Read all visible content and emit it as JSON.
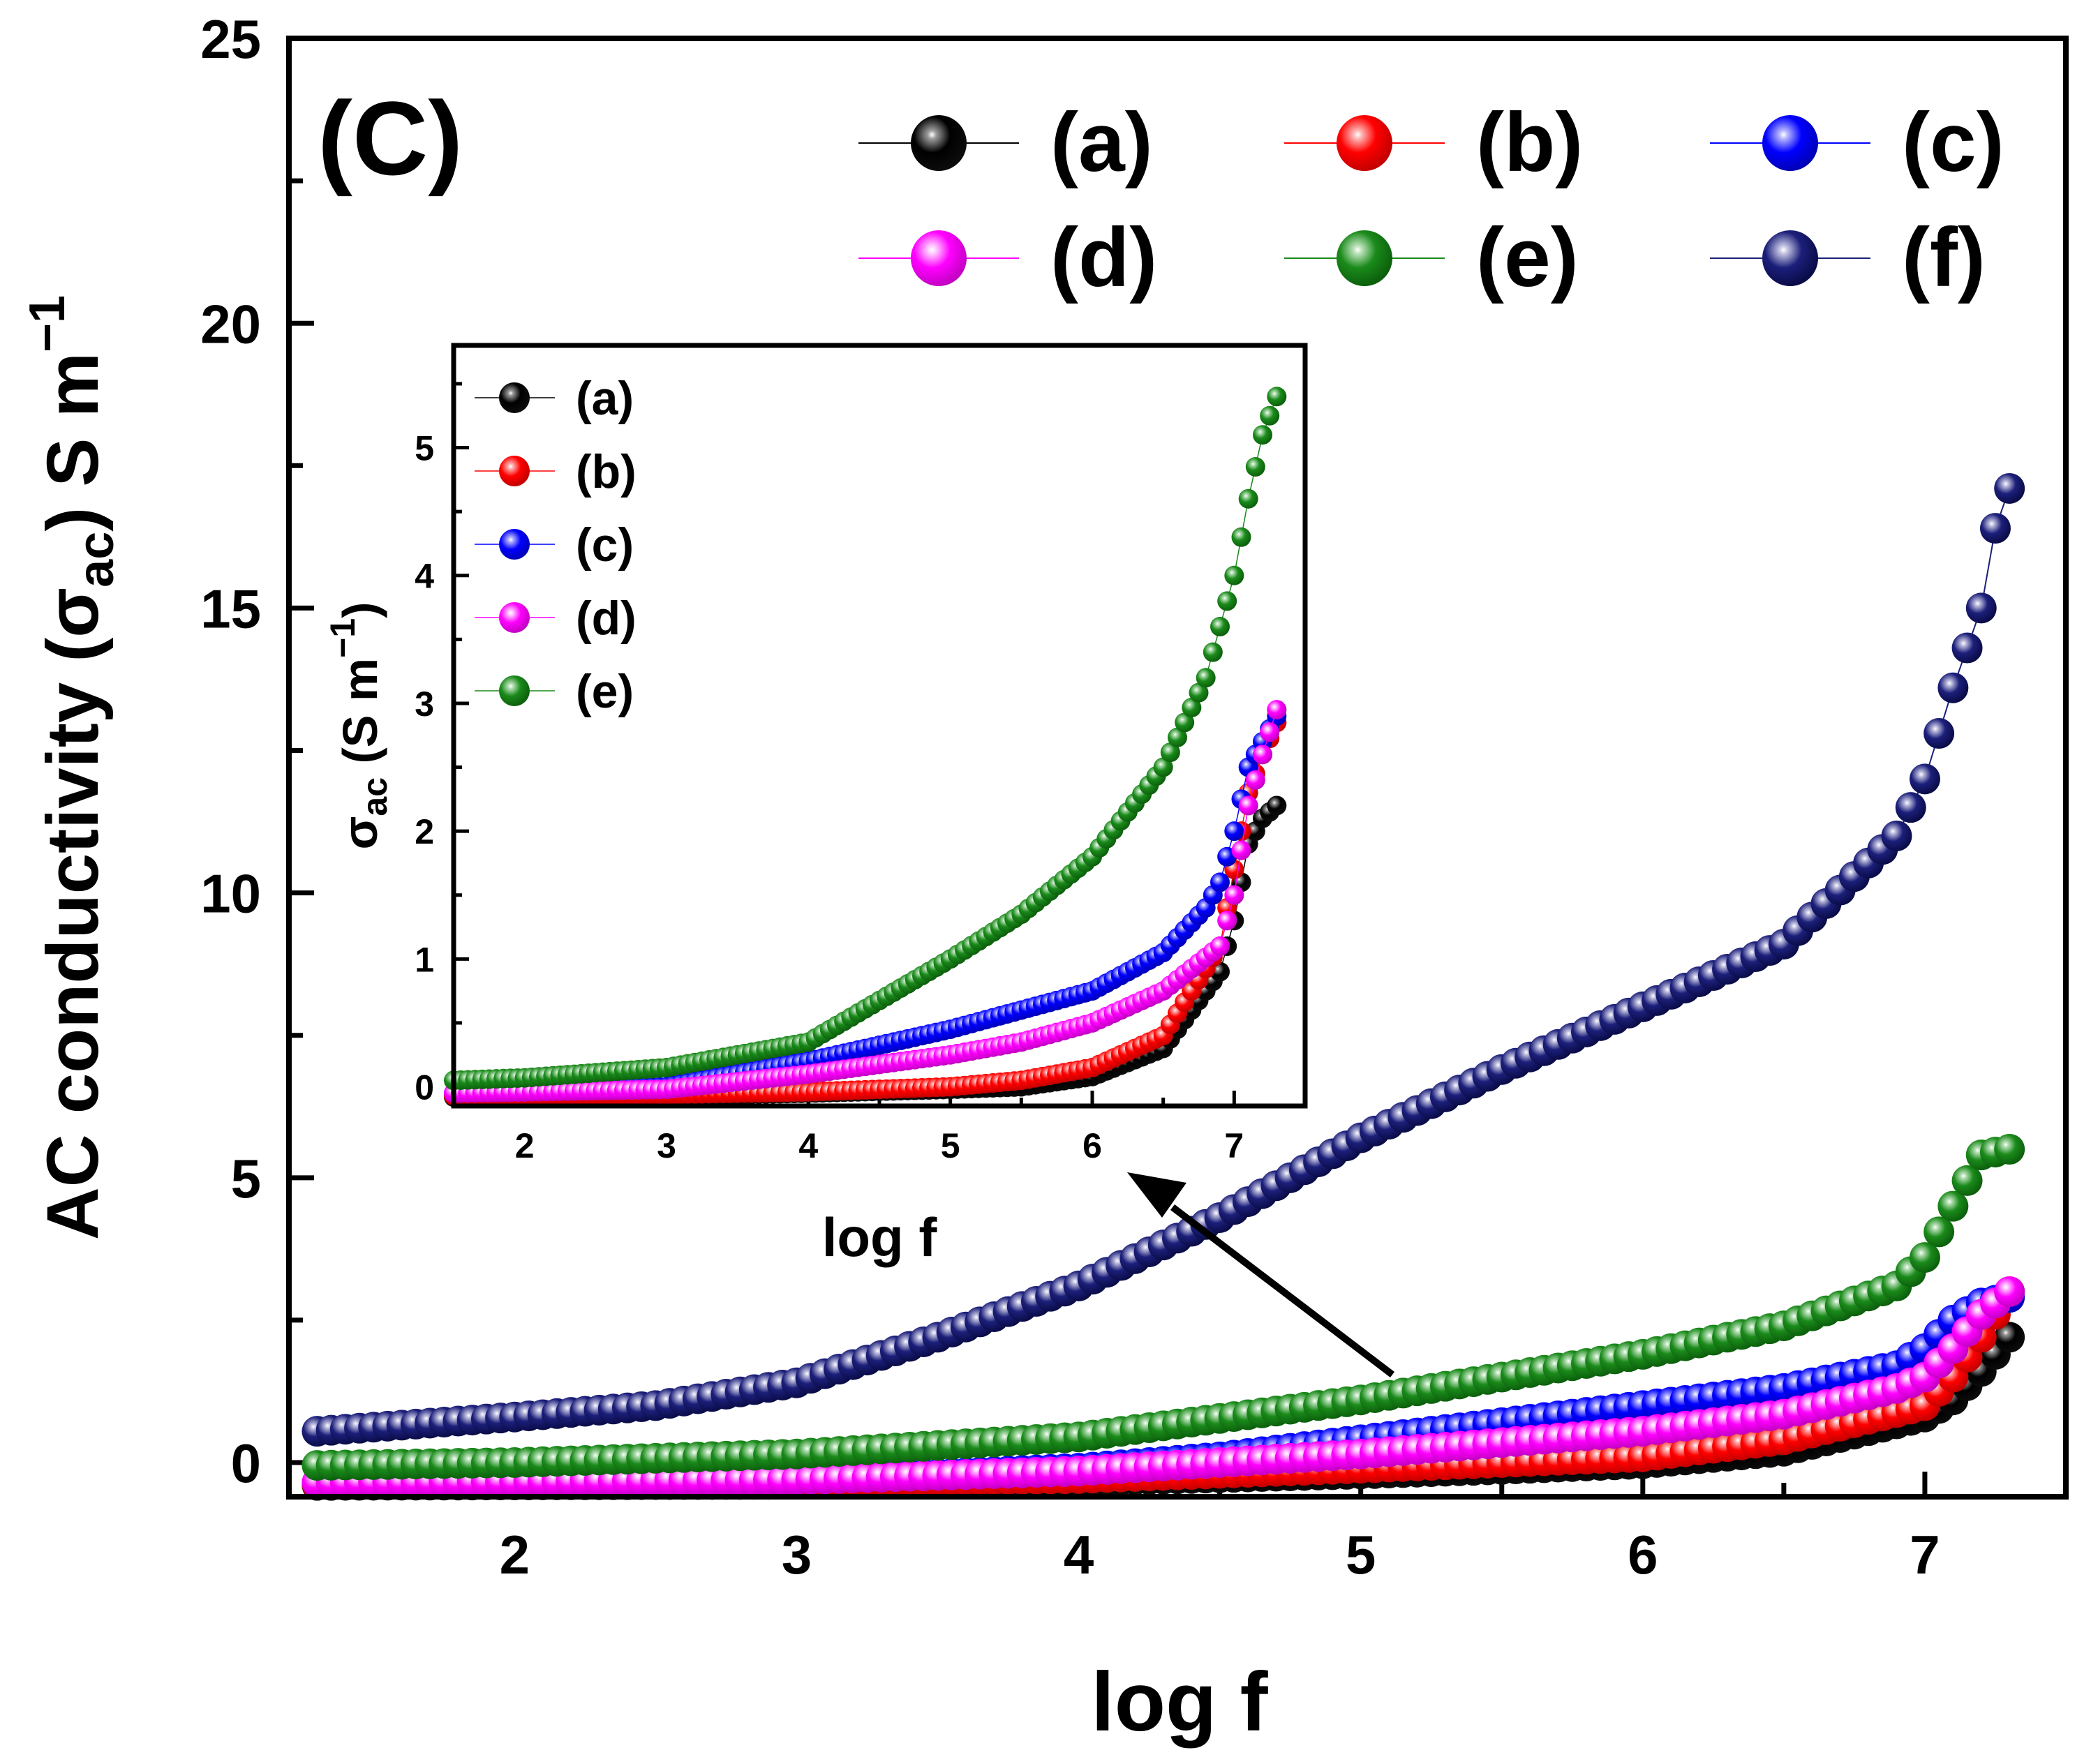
{
  "chart_data": {
    "main": {
      "type": "scatter",
      "panel_label": "(C)",
      "xlabel": "log f",
      "ylabel": {
        "prefix": "AC conductivity (",
        "symbol": "σ",
        "sub": "ac",
        "suffix": ") S m",
        "sup": "−1"
      },
      "xlim": [
        1.2,
        7.5
      ],
      "ylim": [
        -0.6,
        25
      ],
      "xticks": [
        2,
        3,
        4,
        5,
        6,
        7
      ],
      "yticks": [
        0,
        5,
        10,
        15,
        20,
        25
      ],
      "x_range": [
        1.3,
        7.3
      ],
      "series": [
        {
          "name": "(a)",
          "color": "#000000",
          "light": "#9a9a9a",
          "dark": "#0c0c0c",
          "anchors": [
            [
              1.3,
              -0.4
            ],
            [
              3.0,
              -0.38
            ],
            [
              4.0,
              -0.33
            ],
            [
              5.0,
              -0.2
            ],
            [
              5.5,
              -0.12
            ],
            [
              6.0,
              -0.02
            ],
            [
              6.5,
              0.2
            ],
            [
              7.0,
              0.8
            ],
            [
              7.1,
              1.1
            ],
            [
              7.2,
              1.6
            ],
            [
              7.3,
              2.2
            ]
          ]
        },
        {
          "name": "(b)",
          "color": "#ff0000",
          "light": "#ffb3b3",
          "dark": "#c40000",
          "anchors": [
            [
              1.3,
              -0.38
            ],
            [
              3.0,
              -0.35
            ],
            [
              4.0,
              -0.28
            ],
            [
              5.0,
              -0.1
            ],
            [
              5.5,
              0.0
            ],
            [
              6.0,
              0.1
            ],
            [
              6.5,
              0.4
            ],
            [
              7.0,
              1.0
            ],
            [
              7.1,
              1.5
            ],
            [
              7.2,
              2.2
            ],
            [
              7.3,
              3.0
            ]
          ]
        },
        {
          "name": "(c)",
          "color": "#0000ff",
          "light": "#b3b3ff",
          "dark": "#0000b8",
          "anchors": [
            [
              1.3,
              -0.35
            ],
            [
              3.0,
              -0.3
            ],
            [
              4.0,
              -0.1
            ],
            [
              4.5,
              0.1
            ],
            [
              5.0,
              0.4
            ],
            [
              5.5,
              0.7
            ],
            [
              6.0,
              1.0
            ],
            [
              6.5,
              1.3
            ],
            [
              6.9,
              1.7
            ],
            [
              7.0,
              2.0
            ],
            [
              7.1,
              2.5
            ],
            [
              7.2,
              2.8
            ],
            [
              7.3,
              2.9
            ]
          ]
        },
        {
          "name": "(d)",
          "color": "#ff00ff",
          "light": "#ffc8ff",
          "dark": "#c400c4",
          "anchors": [
            [
              1.3,
              -0.35
            ],
            [
              3.0,
              -0.3
            ],
            [
              4.0,
              -0.15
            ],
            [
              4.5,
              0.0
            ],
            [
              5.0,
              0.15
            ],
            [
              5.5,
              0.35
            ],
            [
              6.0,
              0.55
            ],
            [
              6.5,
              0.85
            ],
            [
              6.9,
              1.3
            ],
            [
              7.0,
              1.5
            ],
            [
              7.1,
              2.0
            ],
            [
              7.2,
              2.6
            ],
            [
              7.3,
              3.0
            ]
          ]
        },
        {
          "name": "(e)",
          "color": "#1a8a1a",
          "light": "#b8e0b8",
          "dark": "#0c600c",
          "anchors": [
            [
              1.3,
              -0.05
            ],
            [
              2.0,
              0.0
            ],
            [
              3.0,
              0.15
            ],
            [
              4.0,
              0.45
            ],
            [
              5.0,
              1.1
            ],
            [
              6.0,
              1.9
            ],
            [
              6.5,
              2.4
            ],
            [
              6.9,
              3.1
            ],
            [
              7.0,
              3.6
            ],
            [
              7.1,
              4.5
            ],
            [
              7.2,
              5.4
            ],
            [
              7.3,
              5.5
            ]
          ]
        },
        {
          "name": "(f)",
          "color": "#1c1f7a",
          "light": "#c0c0e0",
          "dark": "#0a0c48",
          "anchors": [
            [
              1.3,
              0.55
            ],
            [
              2.0,
              0.8
            ],
            [
              2.5,
              1.0
            ],
            [
              3.0,
              1.4
            ],
            [
              3.5,
              2.2
            ],
            [
              4.0,
              3.1
            ],
            [
              4.5,
              4.3
            ],
            [
              5.0,
              5.7
            ],
            [
              5.5,
              6.9
            ],
            [
              6.0,
              8.0
            ],
            [
              6.5,
              9.1
            ],
            [
              6.9,
              11.0
            ],
            [
              7.0,
              12.0
            ],
            [
              7.1,
              13.6
            ],
            [
              7.2,
              15.0
            ],
            [
              7.25,
              16.4
            ],
            [
              7.3,
              17.1
            ]
          ]
        }
      ]
    },
    "inset": {
      "type": "scatter",
      "xlabel": "log f",
      "ylabel": {
        "symbol": "σ",
        "sub": "ac",
        "suffix": " (S m",
        "sup": "−1",
        "close": ")"
      },
      "xlim": [
        1.5,
        7.5
      ],
      "ylim": [
        -0.15,
        5.8
      ],
      "xticks": [
        2,
        3,
        4,
        5,
        6,
        7
      ],
      "yticks": [
        0,
        1,
        2,
        3,
        4,
        5
      ],
      "x_range": [
        1.5,
        7.3
      ],
      "series": [
        {
          "name": "(a)",
          "color": "#000000",
          "light": "#9a9a9a",
          "dark": "#0c0c0c",
          "anchors": [
            [
              1.5,
              -0.08
            ],
            [
              3.0,
              -0.07
            ],
            [
              4.0,
              -0.05
            ],
            [
              5.0,
              -0.02
            ],
            [
              5.5,
              0.0
            ],
            [
              6.0,
              0.08
            ],
            [
              6.5,
              0.3
            ],
            [
              6.9,
              0.9
            ],
            [
              7.0,
              1.3
            ],
            [
              7.1,
              1.9
            ],
            [
              7.2,
              2.1
            ],
            [
              7.3,
              2.2
            ]
          ]
        },
        {
          "name": "(b)",
          "color": "#ff0000",
          "light": "#ffb3b3",
          "dark": "#c40000",
          "anchors": [
            [
              1.5,
              -0.07
            ],
            [
              3.0,
              -0.06
            ],
            [
              4.0,
              -0.04
            ],
            [
              5.0,
              0.0
            ],
            [
              5.5,
              0.05
            ],
            [
              6.0,
              0.15
            ],
            [
              6.5,
              0.4
            ],
            [
              6.9,
              1.1
            ],
            [
              7.0,
              1.7
            ],
            [
              7.1,
              2.3
            ],
            [
              7.2,
              2.6
            ],
            [
              7.3,
              2.85
            ]
          ]
        },
        {
          "name": "(c)",
          "color": "#0000ff",
          "light": "#b3b3ff",
          "dark": "#0000b8",
          "anchors": [
            [
              1.5,
              -0.05
            ],
            [
              3.0,
              0.0
            ],
            [
              4.0,
              0.2
            ],
            [
              5.0,
              0.45
            ],
            [
              5.5,
              0.6
            ],
            [
              6.0,
              0.75
            ],
            [
              6.5,
              1.05
            ],
            [
              6.8,
              1.4
            ],
            [
              6.9,
              1.6
            ],
            [
              7.0,
              2.0
            ],
            [
              7.1,
              2.5
            ],
            [
              7.2,
              2.7
            ],
            [
              7.3,
              2.9
            ]
          ]
        },
        {
          "name": "(d)",
          "color": "#ff00ff",
          "light": "#ffc8ff",
          "dark": "#c400c4",
          "anchors": [
            [
              1.5,
              -0.05
            ],
            [
              3.0,
              -0.02
            ],
            [
              4.0,
              0.1
            ],
            [
              5.0,
              0.25
            ],
            [
              5.5,
              0.35
            ],
            [
              6.0,
              0.5
            ],
            [
              6.5,
              0.75
            ],
            [
              6.9,
              1.1
            ],
            [
              7.0,
              1.5
            ],
            [
              7.1,
              2.2
            ],
            [
              7.2,
              2.6
            ],
            [
              7.3,
              2.95
            ]
          ]
        },
        {
          "name": "(e)",
          "color": "#1a8a1a",
          "light": "#b8e0b8",
          "dark": "#0c600c",
          "anchors": [
            [
              1.5,
              0.05
            ],
            [
              2.0,
              0.07
            ],
            [
              3.0,
              0.15
            ],
            [
              4.0,
              0.35
            ],
            [
              5.0,
              1.0
            ],
            [
              5.5,
              1.35
            ],
            [
              6.0,
              1.8
            ],
            [
              6.5,
              2.5
            ],
            [
              6.8,
              3.2
            ],
            [
              6.9,
              3.6
            ],
            [
              7.0,
              4.0
            ],
            [
              7.1,
              4.6
            ],
            [
              7.2,
              5.1
            ],
            [
              7.3,
              5.4
            ]
          ]
        }
      ]
    },
    "legend_main": {
      "placement": "top",
      "columns": 3
    },
    "legend_inset": {
      "placement": "top-left"
    },
    "annotation": "arrow from low-value curves toward inset"
  }
}
